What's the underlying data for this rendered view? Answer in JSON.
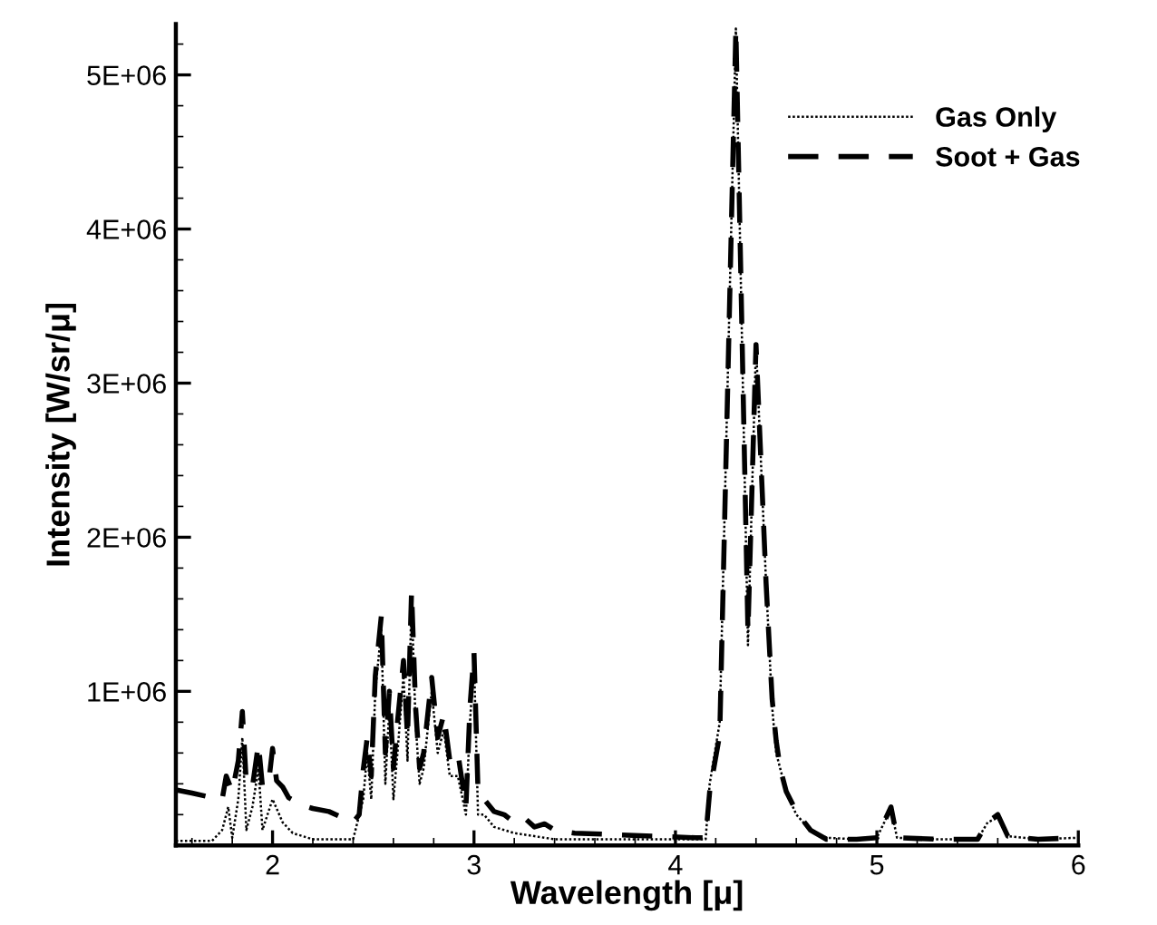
{
  "chart_data": {
    "type": "line",
    "xlabel": "Wavelength [μ]",
    "ylabel": "Intensity [W/sr/μ]",
    "xlim": [
      1.52,
      6
    ],
    "xticks": [
      2,
      3,
      4,
      5,
      6
    ],
    "ylim": [
      0,
      5330000
    ],
    "yticks": [
      {
        "value": 1000000,
        "label": "1E+06"
      },
      {
        "value": 2000000,
        "label": "2E+06"
      },
      {
        "value": 3000000,
        "label": "3E+06"
      },
      {
        "value": 4000000,
        "label": "4E+06"
      },
      {
        "value": 5000000,
        "label": "5E+06"
      }
    ],
    "grid": false,
    "legend": "top right",
    "series": [
      {
        "name": "Gas Only",
        "color": "#000000",
        "line_style": "dotted",
        "x": [
          1.52,
          1.7,
          1.75,
          1.78,
          1.8,
          1.83,
          1.85,
          1.87,
          1.9,
          1.93,
          1.95,
          2.0,
          2.05,
          2.1,
          2.2,
          2.4,
          2.45,
          2.47,
          2.49,
          2.51,
          2.54,
          2.56,
          2.58,
          2.6,
          2.62,
          2.65,
          2.67,
          2.69,
          2.71,
          2.73,
          2.75,
          2.79,
          2.82,
          2.85,
          2.88,
          2.92,
          2.96,
          2.98,
          3.0,
          3.02,
          3.05,
          3.1,
          3.2,
          3.3,
          3.4,
          3.6,
          4.0,
          4.15,
          4.17,
          4.22,
          4.3,
          4.36,
          4.4,
          4.45,
          4.48,
          4.5,
          4.52,
          4.55,
          4.6,
          4.67,
          4.75,
          4.9,
          5.0,
          5.07,
          5.1,
          5.3,
          5.5,
          5.55,
          5.6,
          5.65,
          5.8,
          6.0
        ],
        "values": [
          30000,
          30000,
          100000,
          250000,
          50000,
          300000,
          700000,
          100000,
          250000,
          500000,
          100000,
          300000,
          150000,
          80000,
          40000,
          40000,
          300000,
          600000,
          300000,
          1000000,
          1400000,
          400000,
          900000,
          300000,
          600000,
          1100000,
          550000,
          1600000,
          800000,
          400000,
          500000,
          1000000,
          600000,
          750000,
          450000,
          450000,
          200000,
          800000,
          1200000,
          200000,
          200000,
          120000,
          80000,
          60000,
          40000,
          40000,
          40000,
          40000,
          400000,
          800000,
          5300000,
          1300000,
          3250000,
          1700000,
          900000,
          600000,
          500000,
          350000,
          200000,
          100000,
          50000,
          40000,
          50000,
          240000,
          50000,
          40000,
          40000,
          150000,
          180000,
          60000,
          40000,
          50000
        ]
      },
      {
        "name": "Soot + Gas",
        "color": "#000000",
        "line_style": "dashed",
        "x": [
          1.52,
          1.6,
          1.7,
          1.75,
          1.77,
          1.8,
          1.83,
          1.85,
          1.87,
          1.9,
          1.93,
          1.95,
          1.98,
          2.0,
          2.02,
          2.05,
          2.08,
          2.15,
          2.2,
          2.28,
          2.33,
          2.4,
          2.43,
          2.45,
          2.47,
          2.49,
          2.51,
          2.54,
          2.56,
          2.58,
          2.6,
          2.62,
          2.65,
          2.67,
          2.69,
          2.71,
          2.73,
          2.75,
          2.79,
          2.82,
          2.85,
          2.88,
          2.92,
          2.96,
          2.98,
          3.0,
          3.02,
          3.05,
          3.1,
          3.15,
          3.2,
          3.25,
          3.3,
          3.35,
          3.4,
          3.5,
          3.7,
          3.9,
          4.1,
          4.15,
          4.17,
          4.22,
          4.3,
          4.36,
          4.4,
          4.45,
          4.48,
          4.5,
          4.52,
          4.55,
          4.6,
          4.67,
          4.75,
          4.9,
          5.0,
          5.07,
          5.1,
          5.3,
          5.5,
          5.55,
          5.6,
          5.65,
          5.8,
          6.0
        ],
        "values": [
          360000,
          340000,
          310000,
          300000,
          450000,
          350000,
          550000,
          870000,
          400000,
          380000,
          660000,
          380000,
          400000,
          630000,
          420000,
          380000,
          310000,
          260000,
          240000,
          220000,
          190000,
          150000,
          200000,
          490000,
          700000,
          450000,
          1100000,
          1490000,
          600000,
          1000000,
          500000,
          800000,
          1200000,
          700000,
          1650000,
          900000,
          500000,
          600000,
          1090000,
          700000,
          850000,
          550000,
          600000,
          250000,
          900000,
          1250000,
          350000,
          300000,
          220000,
          200000,
          150000,
          180000,
          120000,
          140000,
          100000,
          80000,
          70000,
          60000,
          50000,
          50000,
          350000,
          720000,
          5300000,
          1390000,
          3250000,
          1700000,
          950000,
          680000,
          500000,
          350000,
          220000,
          100000,
          40000,
          40000,
          50000,
          250000,
          50000,
          40000,
          40000,
          150000,
          200000,
          60000,
          40000,
          50000
        ]
      }
    ]
  }
}
